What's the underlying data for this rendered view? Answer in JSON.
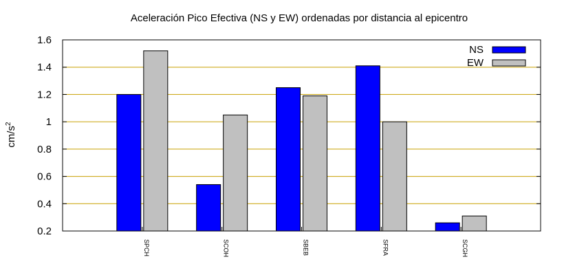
{
  "chart_data": {
    "type": "bar",
    "title": "Aceleración Pico Efectiva (NS y EW) ordenadas por distancia al epicentro",
    "ylabel": "cm/s",
    "ylabel_superscript": "2",
    "xlabel": "",
    "categories": [
      "SPCH",
      "SCOH",
      "SBEB",
      "SFRA",
      "SCGH"
    ],
    "series": [
      {
        "name": "NS",
        "color": "#0000ff",
        "values": [
          1.2,
          0.54,
          1.25,
          1.41,
          0.26
        ]
      },
      {
        "name": "EW",
        "color": "#c0c0c0",
        "values": [
          1.52,
          1.05,
          1.19,
          1.0,
          0.31
        ]
      }
    ],
    "ylim": [
      0.2,
      1.6
    ],
    "yticks": [
      0.2,
      0.4,
      0.6,
      0.8,
      1,
      1.2,
      1.4,
      1.6
    ],
    "ytick_labels": [
      "0.2",
      "0.4",
      "0.6",
      "0.8",
      "1",
      "1.2",
      "1.4",
      "1.6"
    ],
    "grid": true,
    "grid_color": "#c8a000",
    "legend_position": "top-right"
  }
}
